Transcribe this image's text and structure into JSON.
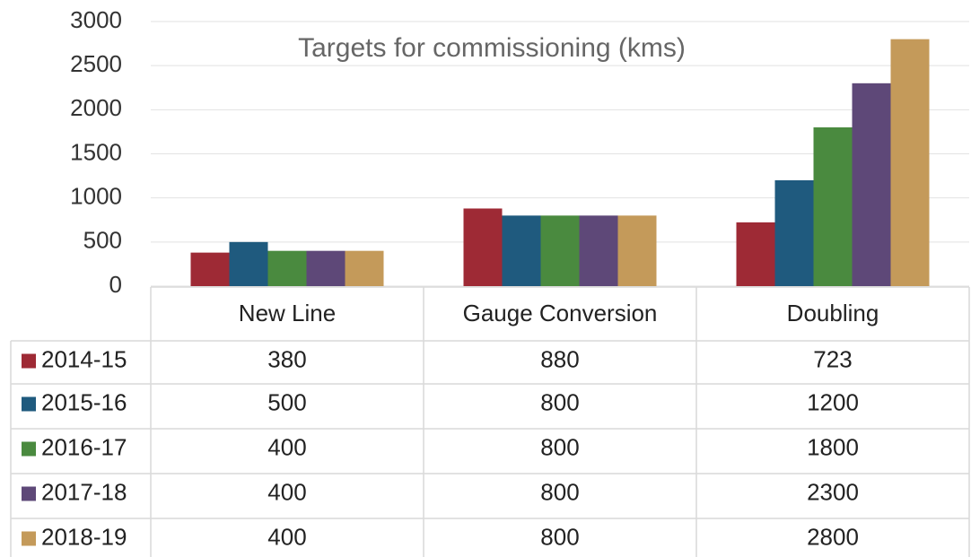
{
  "chart_data": {
    "type": "bar",
    "title": "Targets for commissioning (kms)",
    "categories": [
      "New Line",
      "Gauge Conversion",
      "Doubling"
    ],
    "series": [
      {
        "name": "2014-15",
        "color": "#9e2a35",
        "values": [
          380,
          880,
          723
        ]
      },
      {
        "name": "2015-16",
        "color": "#1f5a7e",
        "values": [
          500,
          800,
          1200
        ]
      },
      {
        "name": "2016-17",
        "color": "#4a8a3f",
        "values": [
          400,
          800,
          1800
        ]
      },
      {
        "name": "2017-18",
        "color": "#5e4878",
        "values": [
          400,
          800,
          2300
        ]
      },
      {
        "name": "2018-19",
        "color": "#c49a5a",
        "values": [
          400,
          800,
          2800
        ]
      }
    ],
    "ylim": [
      0,
      3000
    ],
    "yticks": [
      0,
      500,
      1000,
      1500,
      2000,
      2500,
      3000
    ],
    "grid": true
  }
}
